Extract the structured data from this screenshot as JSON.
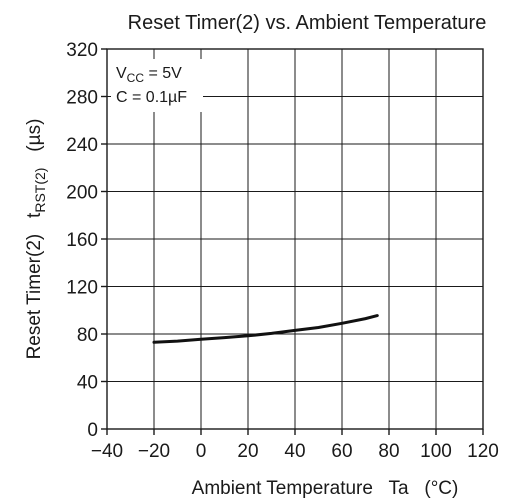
{
  "chart_data": {
    "type": "line",
    "title": "Reset Timer(2) vs. Ambient Temperature",
    "xlabel": {
      "main": "Ambient Temperature",
      "symbol": "Ta",
      "unit": "(°C)"
    },
    "ylabel": {
      "main": "Reset Timer(2)",
      "symbol_base": "t",
      "symbol_sub": "RST(2)",
      "unit": "(µs)"
    },
    "xlim": [
      -40,
      120
    ],
    "ylim": [
      0,
      320
    ],
    "xticks": [
      -40,
      -20,
      0,
      20,
      40,
      60,
      80,
      100,
      120
    ],
    "yticks": [
      0,
      40,
      80,
      120,
      160,
      200,
      240,
      280,
      320
    ],
    "xtick_labels": [
      "−40",
      "−20",
      "0",
      "20",
      "40",
      "60",
      "80",
      "100",
      "120"
    ],
    "ytick_labels": [
      "0",
      "40",
      "80",
      "120",
      "160",
      "200",
      "240",
      "280",
      "320"
    ],
    "grid": true,
    "annotations": {
      "vcc_base": "V",
      "vcc_sub": "CC",
      "vcc_rest": " = 5V",
      "cap": "C = 0.1µF"
    },
    "series": [
      {
        "x": [
          -20,
          -10,
          0,
          10,
          20,
          30,
          40,
          50,
          60,
          70,
          75
        ],
        "y": [
          73,
          74,
          75.5,
          77,
          78.5,
          80.5,
          83,
          85.5,
          89,
          93,
          95.5
        ]
      }
    ]
  }
}
